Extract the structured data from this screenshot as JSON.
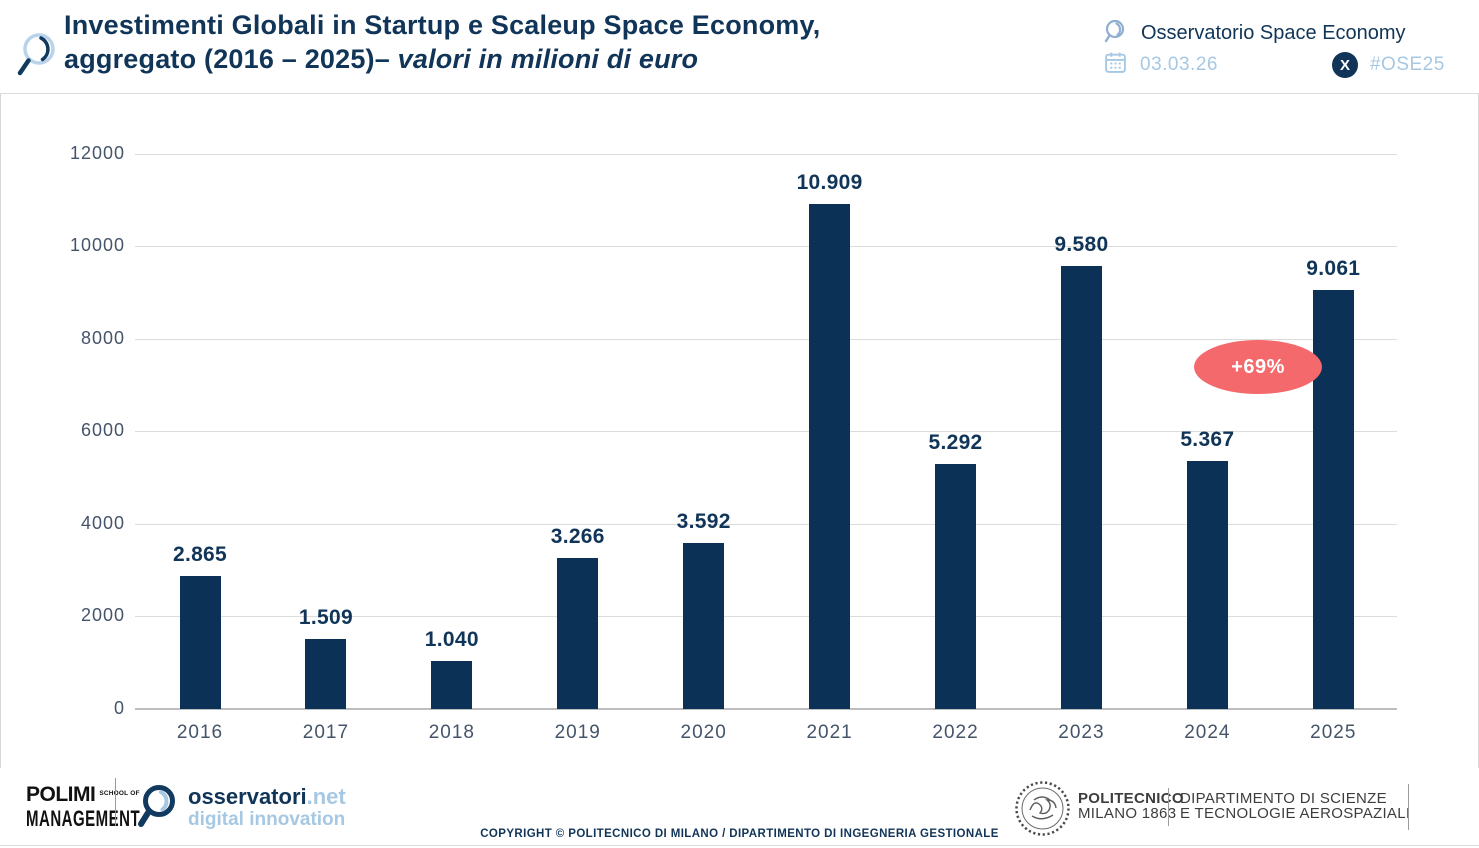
{
  "header": {
    "title_line1": "Investimenti Globali in Startup e Scaleup Space Economy,",
    "title_line2_regular": "aggregato (2016 – 2025)– ",
    "title_line2_italic": "valori in milioni di euro",
    "observatory": "Osservatorio Space Economy",
    "date": "03.03.26",
    "hashtag": "#OSE25",
    "x_social_glyph": "X"
  },
  "chart_data": {
    "type": "bar",
    "title": "Investimenti Globali in Startup e Scaleup Space Economy, aggregato (2016 – 2025) – valori in milioni di euro",
    "categories": [
      "2016",
      "2017",
      "2018",
      "2019",
      "2020",
      "2021",
      "2022",
      "2023",
      "2024",
      "2025"
    ],
    "values": [
      2865,
      1509,
      1040,
      3266,
      3592,
      10909,
      5292,
      9580,
      5367,
      9061
    ],
    "value_labels": [
      "2.865",
      "1.509",
      "1.040",
      "3.266",
      "3.592",
      "10.909",
      "5.292",
      "9.580",
      "5.367",
      "9.061"
    ],
    "unit": "milioni di euro",
    "xlabel": "",
    "ylabel": "",
    "ylim": [
      0,
      12000
    ],
    "yticks": [
      0,
      2000,
      4000,
      6000,
      8000,
      10000,
      12000
    ],
    "grid": true,
    "legend": false,
    "annotation": {
      "label": "+69%",
      "attached_to": "2025"
    }
  },
  "footer": {
    "polimi_name": "POLIMI",
    "polimi_school": "SCHOOL OF",
    "polimi_management": "MANAGEMENT",
    "osservatori_brand": "osservatori",
    "osservatori_net": ".net",
    "osservatori_sub": "digital innovation",
    "copyright": "COPYRIGHT © POLITECNICO DI MILANO / DIPARTIMENTO DI INGEGNERIA GESTIONALE",
    "university_line1": "POLITECNICO",
    "university_line2": "MILANO 1863",
    "department_line1": "DIPARTIMENTO DI SCIENZE",
    "department_line2": "E TECNOLOGIE AEROSPAZIALI"
  },
  "colors": {
    "navy": "#113558",
    "bar": "#0b3156",
    "light_blue": "#a6c8e3",
    "salmon": "#f4696b",
    "grid": "#dcdcdc",
    "axis_line": "#bdbdbd",
    "axis_text": "#44546a",
    "footer_gray": "#3d3d3c",
    "divider": "#9b9b9b"
  }
}
